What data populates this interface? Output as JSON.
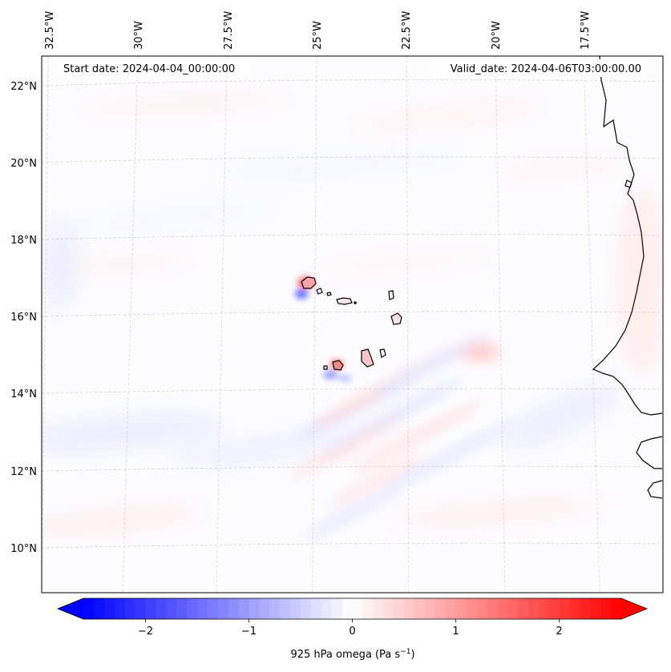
{
  "map": {
    "start_date": "Start date: 2024-04-04_00:00:00",
    "valid_date": "Valid_date: 2024-04-06T03:00:00.00",
    "lon_labels": [
      "32.5°W",
      "30°W",
      "27.5°W",
      "25°W",
      "22.5°W",
      "20°W",
      "17.5°W"
    ],
    "lat_labels": [
      "22°N",
      "20°N",
      "18°N",
      "16°N",
      "14°N",
      "12°N",
      "10°N"
    ],
    "extent": {
      "lon_min": -33.0,
      "lon_max": -15.5,
      "lat_min": 8.9,
      "lat_max": 22.8
    }
  },
  "colorbar": {
    "label_main": "925 hPa omega (Pa s",
    "label_exp": "−1",
    "label_close": ")",
    "ticks": [
      "−2",
      "−1",
      "0",
      "1",
      "2"
    ],
    "tick_values": [
      -2,
      -1,
      0,
      1,
      2
    ],
    "range": [
      -2.6,
      2.6
    ],
    "cmap": "bwr",
    "low_color": "#0000ff",
    "mid_color": "#ffffff",
    "high_color": "#ff0000"
  }
}
